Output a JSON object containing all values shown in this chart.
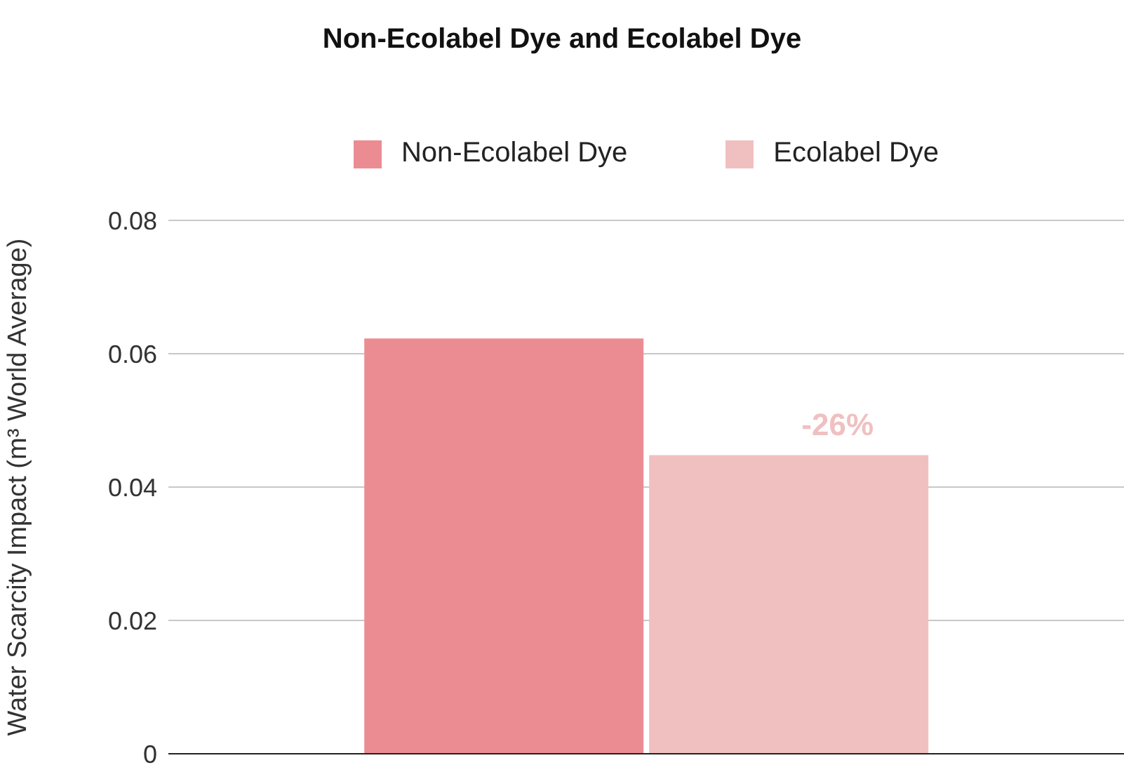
{
  "chart_data": {
    "type": "bar",
    "title": "Non-Ecolabel Dye and Ecolabel Dye",
    "ylabel": "Water Scarcity Impact (m³ World Average)",
    "categories": [
      null
    ],
    "series": [
      {
        "name": "Non-Ecolabel Dye",
        "color": "#eb8c93",
        "values": [
          0.0623
        ]
      },
      {
        "name": "Ecolabel Dye",
        "color": "#f0c0c1",
        "values": [
          0.0448
        ]
      }
    ],
    "annotations": [
      {
        "text": "-26%",
        "y": 0.0448
      }
    ],
    "ylim": [
      0,
      0.08
    ],
    "yticks": [
      0,
      0.02,
      0.04,
      0.06,
      0.08
    ],
    "grid": "y",
    "legend": "top"
  }
}
